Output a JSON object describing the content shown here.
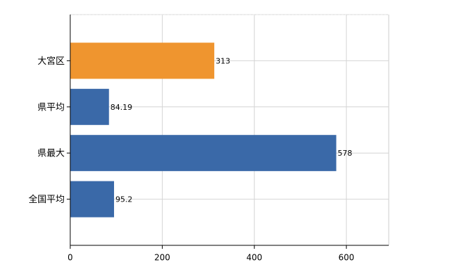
{
  "chart_data": {
    "type": "hbar",
    "categories": [
      "大宮区",
      "県平均",
      "県最大",
      "全国平均"
    ],
    "values": [
      313,
      84.19,
      578,
      95.2
    ],
    "colors": [
      "#ef952f",
      "#3a69a8",
      "#3a69a8",
      "#3a69a8"
    ],
    "xlim": [
      0,
      692
    ],
    "xticks": [
      0,
      200,
      400,
      600
    ],
    "grid": true
  }
}
